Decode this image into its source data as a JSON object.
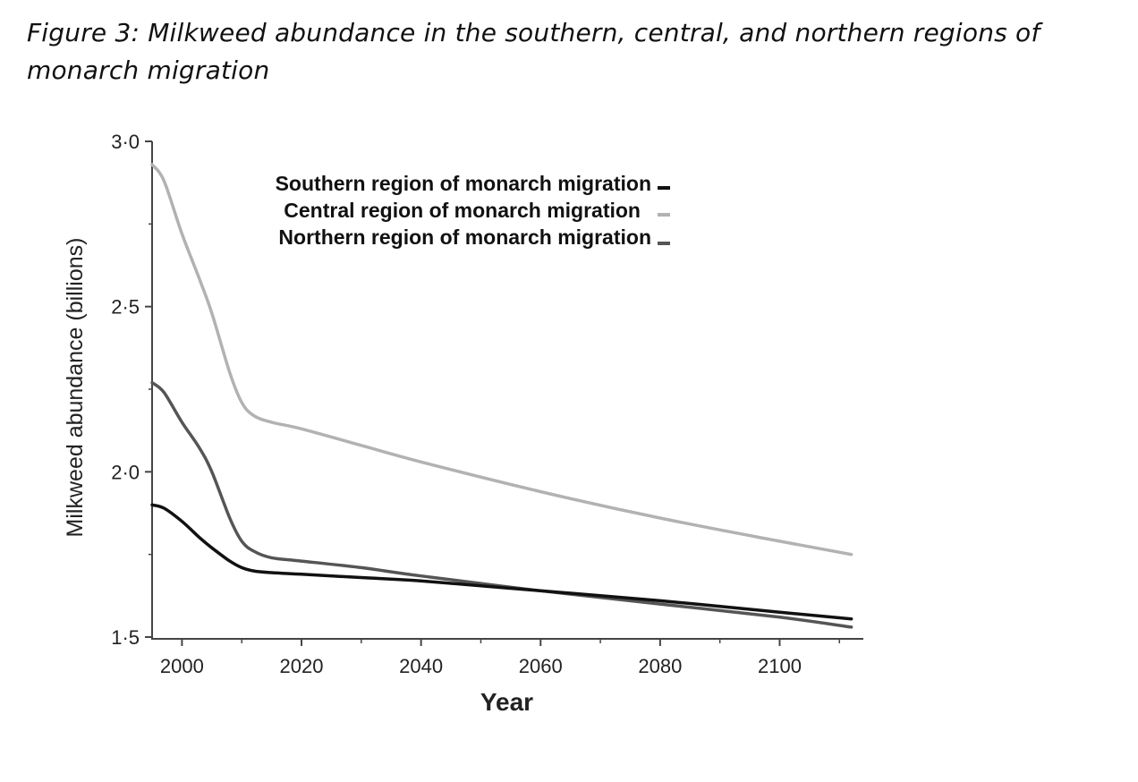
{
  "caption": "Figure 3: Milkweed abundance in the southern, central, and northern regions of monarch migration",
  "chart_data": {
    "type": "line",
    "title": "",
    "xlabel": "Year",
    "ylabel": "Milkweed abundance (billions)",
    "xlim": [
      1995,
      2114
    ],
    "ylim": [
      1.5,
      3.0
    ],
    "x_ticks": [
      2000,
      2020,
      2040,
      2060,
      2080,
      2100
    ],
    "x_tick_labels": [
      "2000",
      "2020",
      "2040",
      "2060",
      "2080",
      "2100"
    ],
    "y_ticks": [
      1.5,
      2.0,
      2.5,
      3.0
    ],
    "y_tick_labels": [
      "1·5",
      "2·0",
      "2·5",
      "3·0"
    ],
    "grid": false,
    "legend_position": "top",
    "x": [
      1995,
      1997,
      2000,
      2003,
      2005,
      2008,
      2010,
      2012,
      2015,
      2020,
      2030,
      2040,
      2060,
      2080,
      2100,
      2112
    ],
    "series": [
      {
        "name": "Southern region of monarch migration",
        "color": "#111111",
        "values": [
          1.9,
          1.89,
          1.85,
          1.8,
          1.77,
          1.73,
          1.71,
          1.7,
          1.695,
          1.69,
          1.68,
          1.67,
          1.64,
          1.61,
          1.575,
          1.555
        ]
      },
      {
        "name": "Central region of monarch migration",
        "color": "#b2b2b2",
        "values": [
          2.93,
          2.88,
          2.72,
          2.58,
          2.48,
          2.3,
          2.21,
          2.17,
          2.15,
          2.13,
          2.08,
          2.03,
          1.94,
          1.86,
          1.79,
          1.75
        ]
      },
      {
        "name": "Northern region of monarch migration",
        "color": "#555555",
        "values": [
          2.27,
          2.24,
          2.15,
          2.07,
          2.0,
          1.86,
          1.79,
          1.76,
          1.74,
          1.73,
          1.71,
          1.685,
          1.64,
          1.6,
          1.56,
          1.53
        ]
      }
    ]
  }
}
